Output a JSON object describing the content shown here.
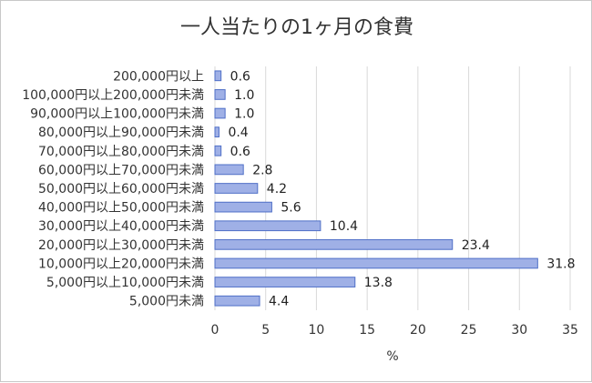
{
  "chart_data": {
    "type": "bar",
    "orientation": "horizontal",
    "title": "一人当たりの1ヶ月の食費",
    "xlabel": "%",
    "ylabel": "",
    "xlim": [
      0,
      35
    ],
    "x_ticks": [
      0,
      5,
      10,
      15,
      20,
      25,
      30,
      35
    ],
    "grid": true,
    "categories": [
      "200,000円以上",
      "100,000円以上200,000円未満",
      "90,000円以上100,000円未満",
      "80,000円以上90,000円未満",
      "70,000円以上80,000円未満",
      "60,000円以上70,000円未満",
      "50,000円以上60,000円未満",
      "40,000円以上50,000円未満",
      "30,000円以上40,000円未満",
      "20,000円以上30,000円未満",
      "10,000円以上20,000円未満",
      "5,000円以上10,000円未満",
      "5,000円未満"
    ],
    "values": [
      0.6,
      1.0,
      1.0,
      0.4,
      0.6,
      2.8,
      4.2,
      5.6,
      10.4,
      23.4,
      31.8,
      13.8,
      4.4
    ],
    "data_labels": [
      "0.6",
      "1.0",
      "1.0",
      "0.4",
      "0.6",
      "2.8",
      "4.2",
      "5.6",
      "10.4",
      "23.4",
      "31.8",
      "13.8",
      "4.4"
    ],
    "colors": {
      "bar_fill": "#9fb0e6",
      "bar_stroke": "#4f6fc7",
      "grid": "#d9d9d9",
      "text": "#333333"
    }
  }
}
